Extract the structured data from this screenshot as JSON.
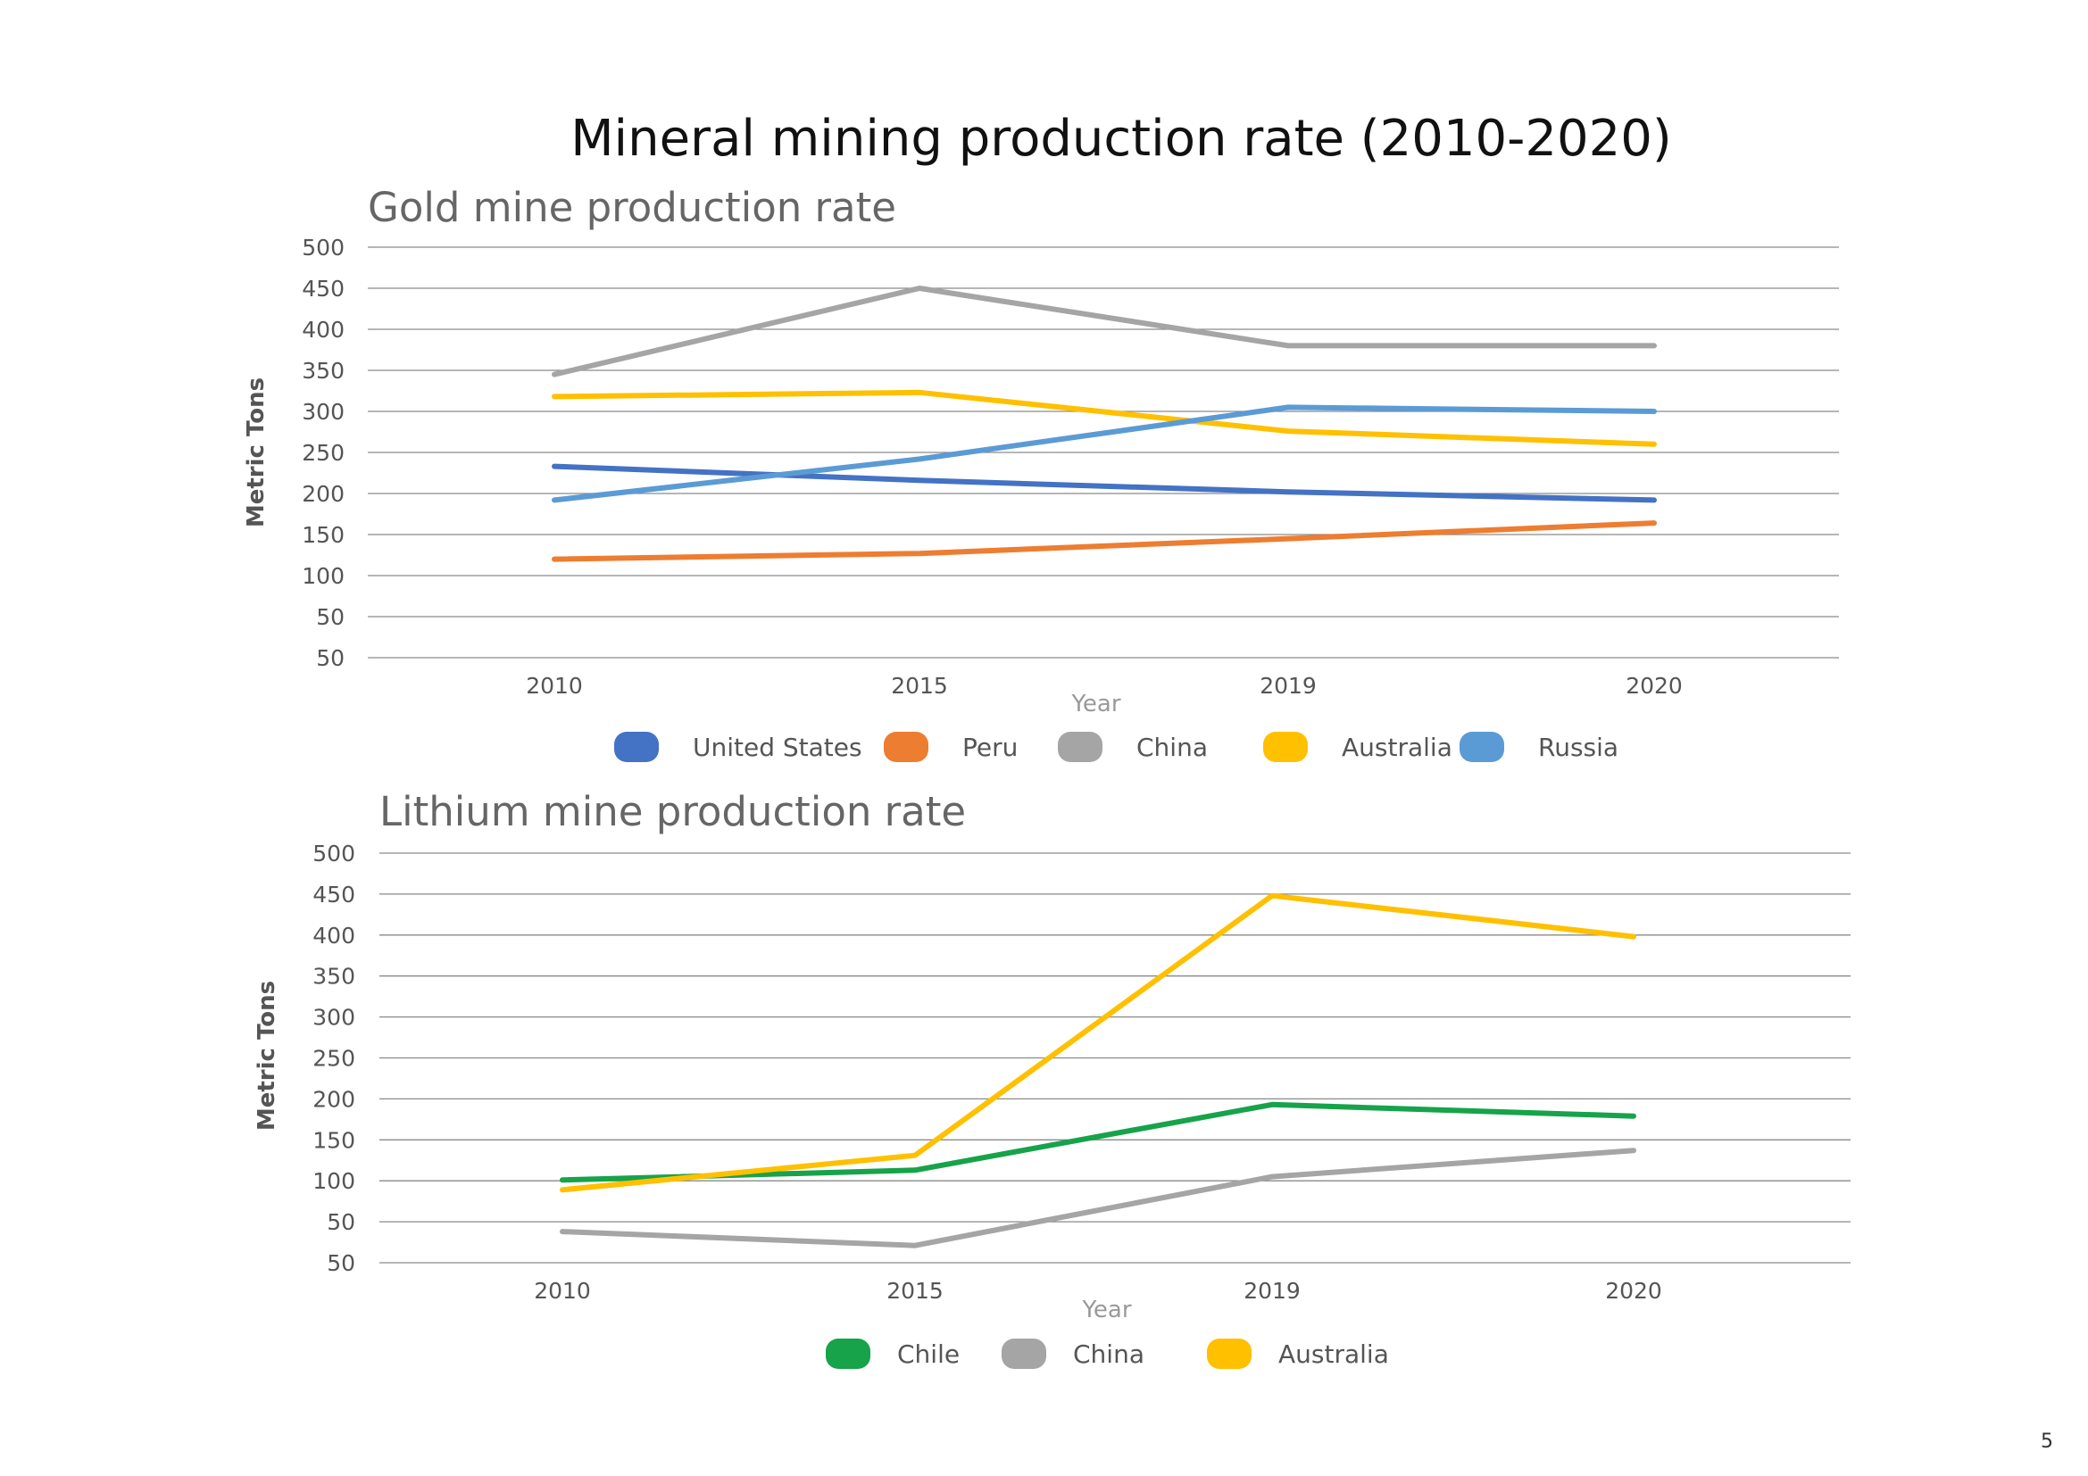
{
  "title": "Mineral mining production rate (2010-2020)",
  "page_number": "5",
  "chart_data": [
    {
      "type": "line",
      "title": "Gold mine production rate",
      "xlabel": "Year",
      "ylabel": "Metric Tons",
      "categories": [
        "2010",
        "2015",
        "2019",
        "2020"
      ],
      "y_tick_labels": [
        "500",
        "450",
        "400",
        "350",
        "300",
        "250",
        "200",
        "150",
        "100",
        "50",
        "50"
      ],
      "ylim": [
        0,
        500
      ],
      "grid": true,
      "legend_position": "bottom",
      "series": [
        {
          "name": "United States",
          "color": "#4472C4",
          "values": [
            233,
            216,
            202,
            192
          ]
        },
        {
          "name": "Peru",
          "color": "#ED7D31",
          "values": [
            120,
            127,
            145,
            164
          ]
        },
        {
          "name": "China",
          "color": "#A5A5A5",
          "values": [
            345,
            450,
            380,
            380
          ]
        },
        {
          "name": "Australia",
          "color": "#FFC000",
          "values": [
            318,
            323,
            276,
            260
          ]
        },
        {
          "name": "Russia",
          "color": "#5B9BD5",
          "values": [
            192,
            242,
            305,
            300
          ]
        }
      ]
    },
    {
      "type": "line",
      "title": "Lithium mine production rate",
      "xlabel": "Year",
      "ylabel": "Metric Tons",
      "categories": [
        "2010",
        "2015",
        "2019",
        "2020"
      ],
      "y_tick_labels": [
        "500",
        "450",
        "400",
        "350",
        "300",
        "250",
        "200",
        "150",
        "100",
        "50",
        "50"
      ],
      "ylim": [
        0,
        500
      ],
      "grid": true,
      "legend_position": "bottom",
      "series": [
        {
          "name": "Chile",
          "color": "#16A34A",
          "values": [
            101,
            113,
            193,
            179
          ]
        },
        {
          "name": "China",
          "color": "#A5A5A5",
          "values": [
            38,
            21,
            105,
            137
          ]
        },
        {
          "name": "Australia",
          "color": "#FFC000",
          "values": [
            89,
            131,
            448,
            398
          ]
        }
      ]
    }
  ]
}
